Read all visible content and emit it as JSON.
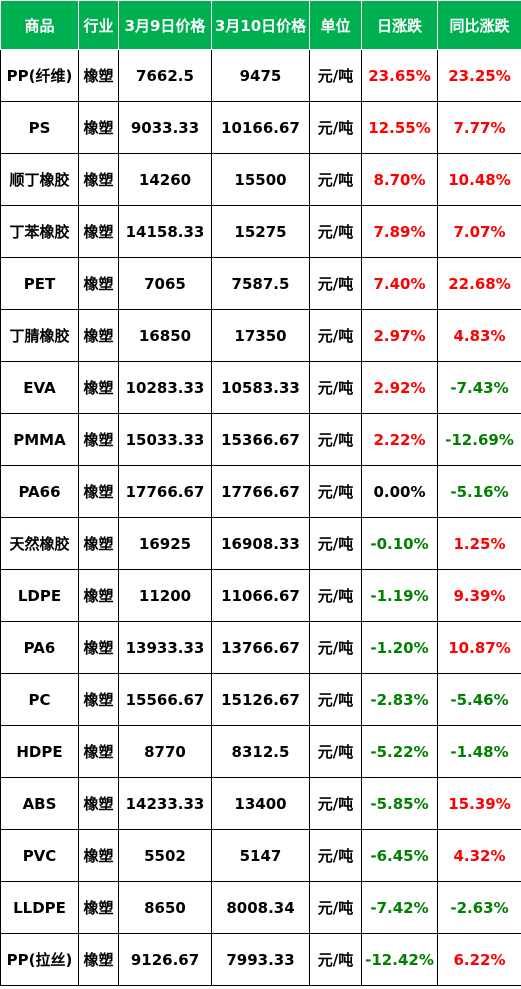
{
  "colors": {
    "header_bg": "#00b050",
    "header_text": "#ffffff",
    "rise": "#ff0000",
    "fall": "#008000",
    "neutral": "#000000"
  },
  "headers": [
    "商品",
    "行业",
    "3月9日价格",
    "3月10日价格",
    "单位",
    "日涨跌",
    "同比涨跌"
  ],
  "rows": [
    {
      "product": "PP(纤维)",
      "industry": "橡塑",
      "price_mar9": "7662.5",
      "price_mar10": "9475",
      "unit": "元/吨",
      "daily_change": "23.65%",
      "yoy_change": "23.25%"
    },
    {
      "product": "PS",
      "industry": "橡塑",
      "price_mar9": "9033.33",
      "price_mar10": "10166.67",
      "unit": "元/吨",
      "daily_change": "12.55%",
      "yoy_change": "7.77%"
    },
    {
      "product": "顺丁橡胶",
      "industry": "橡塑",
      "price_mar9": "14260",
      "price_mar10": "15500",
      "unit": "元/吨",
      "daily_change": "8.70%",
      "yoy_change": "10.48%"
    },
    {
      "product": "丁苯橡胶",
      "industry": "橡塑",
      "price_mar9": "14158.33",
      "price_mar10": "15275",
      "unit": "元/吨",
      "daily_change": "7.89%",
      "yoy_change": "7.07%"
    },
    {
      "product": "PET",
      "industry": "橡塑",
      "price_mar9": "7065",
      "price_mar10": "7587.5",
      "unit": "元/吨",
      "daily_change": "7.40%",
      "yoy_change": "22.68%"
    },
    {
      "product": "丁腈橡胶",
      "industry": "橡塑",
      "price_mar9": "16850",
      "price_mar10": "17350",
      "unit": "元/吨",
      "daily_change": "2.97%",
      "yoy_change": "4.83%"
    },
    {
      "product": "EVA",
      "industry": "橡塑",
      "price_mar9": "10283.33",
      "price_mar10": "10583.33",
      "unit": "元/吨",
      "daily_change": "2.92%",
      "yoy_change": "-7.43%"
    },
    {
      "product": "PMMA",
      "industry": "橡塑",
      "price_mar9": "15033.33",
      "price_mar10": "15366.67",
      "unit": "元/吨",
      "daily_change": "2.22%",
      "yoy_change": "-12.69%"
    },
    {
      "product": "PA66",
      "industry": "橡塑",
      "price_mar9": "17766.67",
      "price_mar10": "17766.67",
      "unit": "元/吨",
      "daily_change": "0.00%",
      "yoy_change": "-5.16%"
    },
    {
      "product": "天然橡胶",
      "industry": "橡塑",
      "price_mar9": "16925",
      "price_mar10": "16908.33",
      "unit": "元/吨",
      "daily_change": "-0.10%",
      "yoy_change": "1.25%"
    },
    {
      "product": "LDPE",
      "industry": "橡塑",
      "price_mar9": "11200",
      "price_mar10": "11066.67",
      "unit": "元/吨",
      "daily_change": "-1.19%",
      "yoy_change": "9.39%"
    },
    {
      "product": "PA6",
      "industry": "橡塑",
      "price_mar9": "13933.33",
      "price_mar10": "13766.67",
      "unit": "元/吨",
      "daily_change": "-1.20%",
      "yoy_change": "10.87%"
    },
    {
      "product": "PC",
      "industry": "橡塑",
      "price_mar9": "15566.67",
      "price_mar10": "15126.67",
      "unit": "元/吨",
      "daily_change": "-2.83%",
      "yoy_change": "-5.46%"
    },
    {
      "product": "HDPE",
      "industry": "橡塑",
      "price_mar9": "8770",
      "price_mar10": "8312.5",
      "unit": "元/吨",
      "daily_change": "-5.22%",
      "yoy_change": "-1.48%"
    },
    {
      "product": "ABS",
      "industry": "橡塑",
      "price_mar9": "14233.33",
      "price_mar10": "13400",
      "unit": "元/吨",
      "daily_change": "-5.85%",
      "yoy_change": "15.39%"
    },
    {
      "product": "PVC",
      "industry": "橡塑",
      "price_mar9": "5502",
      "price_mar10": "5147",
      "unit": "元/吨",
      "daily_change": "-6.45%",
      "yoy_change": "4.32%"
    },
    {
      "product": "LLDPE",
      "industry": "橡塑",
      "price_mar9": "8650",
      "price_mar10": "8008.34",
      "unit": "元/吨",
      "daily_change": "-7.42%",
      "yoy_change": "-2.63%"
    },
    {
      "product": "PP(拉丝)",
      "industry": "橡塑",
      "price_mar9": "9126.67",
      "price_mar10": "7993.33",
      "unit": "元/吨",
      "daily_change": "-12.42%",
      "yoy_change": "6.22%"
    }
  ]
}
